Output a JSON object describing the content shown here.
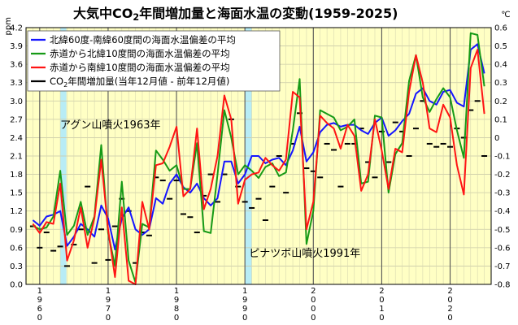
{
  "chart_data": {
    "type": "line",
    "title": "大気中CO2年間増加量と海面水温の変動(1959-2025)",
    "title_parts": {
      "pre": "大気中CO",
      "sub": "2",
      "post": "年間増加量と海面水温の変動(1959-2025)"
    },
    "y_left": {
      "unit": "ppm",
      "range": [
        0,
        4.2
      ],
      "ticks": [
        "0.0",
        "0.3",
        "0.6",
        "0.9",
        "1.2",
        "1.5",
        "1.8",
        "2.1",
        "2.4",
        "2.7",
        "3.0",
        "3.3",
        "3.6",
        "3.9",
        "4.2"
      ]
    },
    "y_right": {
      "unit": "℃",
      "range": [
        -0.8,
        0.6
      ],
      "ticks": [
        "-0.8",
        "-0.7",
        "-0.6",
        "-0.5",
        "-0.4",
        "-0.3",
        "-0.2",
        "-0.1",
        "0",
        "0.1",
        "0.2",
        "0.3",
        "0.4",
        "0.5",
        "0.6"
      ]
    },
    "x": {
      "range": [
        1958,
        2026
      ],
      "ticks": [
        {
          "year": 1960,
          "label": "1960"
        },
        {
          "year": 1970,
          "label": "1970"
        },
        {
          "year": 1980,
          "label": "1980"
        },
        {
          "year": 1990,
          "label": "1990"
        },
        {
          "year": 2000,
          "label": "2000"
        },
        {
          "year": 2010,
          "label": "2010"
        },
        {
          "year": 2020,
          "label": "2020"
        }
      ]
    },
    "volcano_bands": [
      [
        1963.0,
        1963.9
      ],
      [
        1990.0,
        1991.0
      ]
    ],
    "annotations": [
      {
        "text": "アグン山噴火1963年",
        "x": 1963,
        "y_left": 2.55
      },
      {
        "text": "ピナツボ山噴火1991年",
        "x": 1990.6,
        "y_left": 0.45
      }
    ],
    "legend": [
      {
        "key": "blue",
        "label": "北緯60度-南緯60度間の海面水温偏差の平均",
        "color": "#1515ff"
      },
      {
        "key": "green",
        "label": "赤道から北緯10度間の海面水温偏差の平均",
        "color": "#169a16"
      },
      {
        "key": "red",
        "label": "赤道から南緯10度間の海面水温偏差の平均",
        "color": "#ff1414"
      },
      {
        "key": "co2",
        "label": "CO2年間増加量(当年12月値 - 前年12月値)",
        "label_parts": {
          "pre": "CO",
          "sub": "2",
          "post": "年間増加量(当年12月値 - 前年12月値)"
        },
        "color": "#000000"
      }
    ],
    "series": [
      {
        "name": "blue",
        "axis": "right",
        "color": "#1515ff",
        "x": [
          1959,
          1960,
          1961,
          1962,
          1963,
          1964,
          1965,
          1966,
          1967,
          1968,
          1969,
          1970,
          1971,
          1972,
          1973,
          1974,
          1975,
          1976,
          1977,
          1978,
          1979,
          1980,
          1981,
          1982,
          1983,
          1984,
          1985,
          1986,
          1987,
          1988,
          1989,
          1990,
          1991,
          1992,
          1993,
          1994,
          1995,
          1996,
          1997,
          1998,
          1999,
          2000,
          2001,
          2002,
          2003,
          2004,
          2005,
          2006,
          2007,
          2008,
          2009,
          2010,
          2011,
          2012,
          2013,
          2014,
          2015,
          2016,
          2017,
          2018,
          2019,
          2020,
          2021,
          2022,
          2023,
          2024,
          2025
        ],
        "y": [
          -0.45,
          -0.48,
          -0.43,
          -0.42,
          -0.4,
          -0.59,
          -0.54,
          -0.47,
          -0.5,
          -0.54,
          -0.37,
          -0.44,
          -0.61,
          -0.44,
          -0.38,
          -0.5,
          -0.53,
          -0.5,
          -0.33,
          -0.36,
          -0.25,
          -0.2,
          -0.27,
          -0.3,
          -0.25,
          -0.33,
          -0.37,
          -0.33,
          -0.13,
          -0.13,
          -0.25,
          -0.2,
          -0.1,
          -0.1,
          -0.14,
          -0.12,
          -0.11,
          -0.15,
          -0.07,
          0.06,
          -0.13,
          -0.08,
          0.03,
          0.07,
          0.08,
          0.06,
          0.07,
          0.07,
          0.04,
          0.02,
          0.08,
          0.11,
          0.01,
          0.04,
          0.09,
          0.13,
          0.24,
          0.27,
          0.2,
          0.18,
          0.25,
          0.26,
          0.19,
          0.17,
          0.48,
          0.51,
          0.35
        ]
      },
      {
        "name": "green",
        "axis": "right",
        "color": "#169a16",
        "x": [
          1959,
          1960,
          1961,
          1962,
          1963,
          1964,
          1965,
          1966,
          1967,
          1968,
          1969,
          1970,
          1971,
          1972,
          1973,
          1974,
          1975,
          1976,
          1977,
          1978,
          1979,
          1980,
          1981,
          1982,
          1983,
          1984,
          1985,
          1986,
          1987,
          1988,
          1989,
          1990,
          1991,
          1992,
          1993,
          1994,
          1995,
          1996,
          1997,
          1998,
          1999,
          2000,
          2001,
          2002,
          2003,
          2004,
          2005,
          2006,
          2007,
          2008,
          2009,
          2010,
          2011,
          2012,
          2013,
          2014,
          2015,
          2016,
          2017,
          2018,
          2019,
          2020,
          2021,
          2022,
          2023,
          2024,
          2025
        ],
        "y": [
          -0.48,
          -0.5,
          -0.49,
          -0.43,
          -0.18,
          -0.53,
          -0.48,
          -0.35,
          -0.53,
          -0.43,
          -0.04,
          -0.52,
          -0.7,
          -0.24,
          -0.67,
          -0.79,
          -0.47,
          -0.49,
          -0.07,
          -0.12,
          -0.18,
          -0.15,
          -0.28,
          -0.28,
          -0.03,
          -0.51,
          -0.52,
          -0.2,
          0.15,
          0.0,
          -0.2,
          -0.15,
          -0.18,
          -0.22,
          -0.16,
          -0.14,
          -0.21,
          -0.19,
          0.04,
          0.32,
          -0.58,
          -0.4,
          0.15,
          0.13,
          0.11,
          0.04,
          0.06,
          0.1,
          -0.25,
          -0.24,
          0.12,
          0.11,
          -0.3,
          -0.09,
          -0.03,
          0.31,
          0.45,
          0.22,
          0.14,
          0.21,
          0.27,
          0.22,
          0.04,
          -0.11,
          0.57,
          0.56,
          0.28
        ]
      },
      {
        "name": "red",
        "axis": "right",
        "color": "#ff1414",
        "x": [
          1959,
          1960,
          1961,
          1962,
          1963,
          1964,
          1965,
          1966,
          1967,
          1968,
          1969,
          1970,
          1971,
          1972,
          1973,
          1974,
          1975,
          1976,
          1977,
          1978,
          1979,
          1980,
          1981,
          1982,
          1983,
          1984,
          1985,
          1986,
          1987,
          1988,
          1989,
          1990,
          1991,
          1992,
          1993,
          1994,
          1995,
          1996,
          1997,
          1998,
          1999,
          2000,
          2001,
          2002,
          2003,
          2004,
          2005,
          2006,
          2007,
          2008,
          2009,
          2010,
          2011,
          2012,
          2013,
          2014,
          2015,
          2016,
          2017,
          2018,
          2019,
          2020,
          2021,
          2022,
          2023,
          2024,
          2025
        ],
        "y": [
          -0.47,
          -0.52,
          -0.46,
          -0.47,
          -0.25,
          -0.67,
          -0.56,
          -0.38,
          -0.6,
          -0.44,
          -0.12,
          -0.5,
          -0.76,
          -0.38,
          -0.78,
          -0.8,
          -0.35,
          -0.5,
          -0.15,
          -0.14,
          -0.05,
          0.06,
          -0.32,
          -0.28,
          0.05,
          -0.39,
          -0.28,
          -0.1,
          0.23,
          0.1,
          -0.36,
          -0.23,
          -0.2,
          -0.19,
          -0.11,
          -0.15,
          -0.18,
          -0.12,
          0.25,
          0.22,
          -0.5,
          -0.35,
          0.12,
          0.08,
          0.05,
          -0.06,
          0.07,
          0.01,
          -0.29,
          -0.2,
          0.1,
          -0.07,
          -0.28,
          -0.06,
          -0.08,
          0.25,
          0.45,
          0.3,
          0.05,
          0.03,
          0.18,
          0.11,
          -0.15,
          -0.31,
          0.38,
          0.48,
          0.13
        ]
      },
      {
        "name": "co2",
        "axis": "left",
        "color": "#000000",
        "x": [
          1959,
          1960,
          1961,
          1962,
          1963,
          1964,
          1965,
          1966,
          1967,
          1968,
          1969,
          1970,
          1971,
          1972,
          1973,
          1974,
          1975,
          1976,
          1977,
          1978,
          1979,
          1980,
          1981,
          1982,
          1983,
          1984,
          1985,
          1986,
          1987,
          1988,
          1989,
          1990,
          1991,
          1992,
          1993,
          1994,
          1995,
          1996,
          1997,
          1998,
          1999,
          2000,
          2001,
          2002,
          2003,
          2004,
          2005,
          2006,
          2007,
          2008,
          2009,
          2010,
          2011,
          2012,
          2013,
          2014,
          2015,
          2016,
          2017,
          2018,
          2019,
          2020,
          2021,
          2022,
          2023,
          2024,
          2025
        ],
        "y": [
          0.95,
          0.6,
          0.85,
          0.55,
          0.62,
          0.3,
          0.65,
          0.9,
          1.6,
          0.35,
          0.9,
          0.4,
          0.95,
          1.4,
          1.2,
          0.35,
          0.85,
          0.8,
          1.75,
          1.7,
          1.4,
          1.7,
          1.15,
          1.1,
          0.85,
          1.45,
          1.8,
          1.35,
          1.8,
          2.7,
          1.6,
          1.35,
          1.25,
          1.4,
          1.05,
          1.6,
          2.1,
          1.5,
          2.3,
          2.8,
          1.9,
          1.85,
          1.75,
          2.3,
          2.2,
          1.6,
          2.3,
          2.3,
          2.55,
          2.0,
          1.75,
          2.5,
          2.0,
          2.65,
          2.5,
          2.1,
          2.55,
          3.0,
          2.3,
          2.25,
          2.3,
          2.25,
          2.55,
          2.4,
          2.85,
          3.0,
          2.1
        ]
      }
    ]
  }
}
